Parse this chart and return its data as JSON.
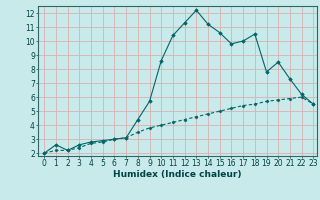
{
  "xlabel": "Humidex (Indice chaleur)",
  "bg_color": "#c8eaea",
  "grid_color": "#d9b0b0",
  "line_color": "#006666",
  "xlim": [
    -0.5,
    23.3
  ],
  "ylim": [
    1.8,
    12.5
  ],
  "xticks": [
    0,
    1,
    2,
    3,
    4,
    5,
    6,
    7,
    8,
    9,
    10,
    11,
    12,
    13,
    14,
    15,
    16,
    17,
    18,
    19,
    20,
    21,
    22,
    23
  ],
  "yticks": [
    2,
    3,
    4,
    5,
    6,
    7,
    8,
    9,
    10,
    11,
    12
  ],
  "curve1_x": [
    0,
    1,
    2,
    3,
    4,
    5,
    6,
    7,
    8,
    9,
    10,
    11,
    12,
    13,
    14,
    15,
    16,
    17,
    18,
    19,
    20,
    21,
    22,
    23
  ],
  "curve1_y": [
    2.0,
    2.6,
    2.2,
    2.6,
    2.8,
    2.9,
    3.0,
    3.1,
    4.4,
    5.7,
    8.6,
    10.4,
    11.3,
    12.2,
    11.2,
    10.6,
    9.8,
    10.0,
    10.5,
    7.8,
    8.5,
    7.3,
    6.2,
    5.5
  ],
  "curve2_x": [
    0,
    1,
    2,
    3,
    4,
    5,
    6,
    7,
    8,
    9,
    10,
    11,
    12,
    13,
    14,
    15,
    16,
    17,
    18,
    19,
    20,
    21,
    22,
    23
  ],
  "curve2_y": [
    2.0,
    2.2,
    2.2,
    2.4,
    2.7,
    2.8,
    3.0,
    3.1,
    3.5,
    3.8,
    4.0,
    4.2,
    4.4,
    4.6,
    4.8,
    5.0,
    5.2,
    5.4,
    5.5,
    5.7,
    5.8,
    5.9,
    6.0,
    5.5
  ],
  "tick_fontsize": 5.5,
  "xlabel_fontsize": 6.5
}
